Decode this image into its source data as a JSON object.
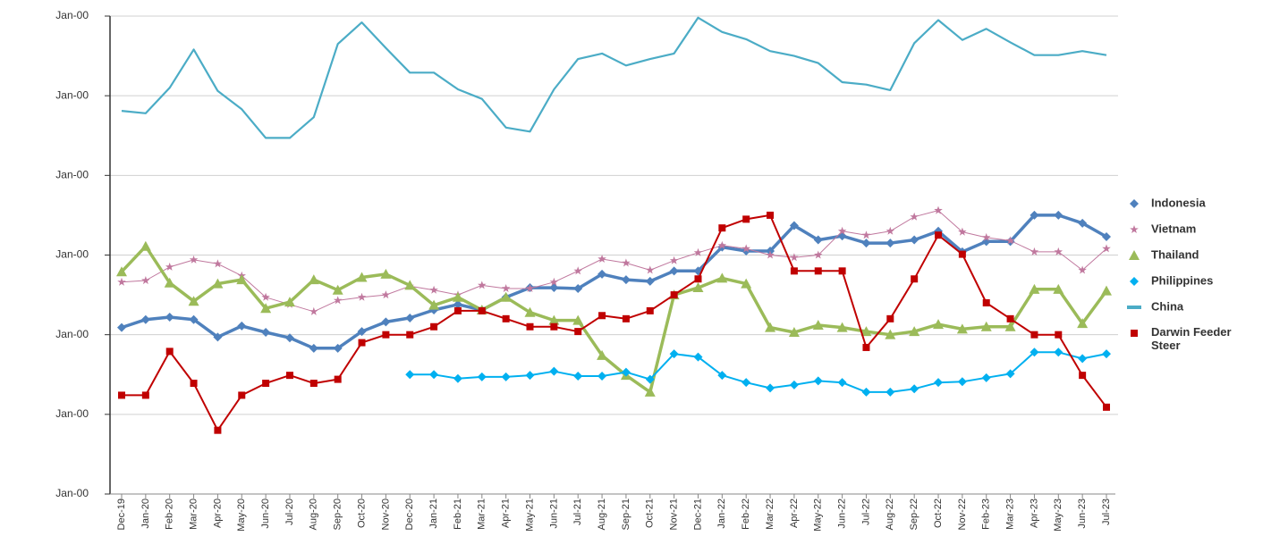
{
  "chart_data": {
    "type": "line",
    "categories": [
      "Dec-19",
      "Jan-20",
      "Feb-20",
      "Mar-20",
      "Apr-20",
      "May-20",
      "Jun-20",
      "Jul-20",
      "Aug-20",
      "Sep-20",
      "Oct-20",
      "Nov-20",
      "Dec-20",
      "Jan-21",
      "Feb-21",
      "Mar-21",
      "Apr-21",
      "May-21",
      "Jun-21",
      "Jul-21",
      "Aug-21",
      "Sep-21",
      "Oct-21",
      "Nov-21",
      "Dec-21",
      "Jan-22",
      "Feb-22",
      "Mar-22",
      "Apr-22",
      "May-22",
      "Jun-22",
      "Jul-22",
      "Aug-22",
      "Sep-22",
      "Oct-22",
      "Nov-22",
      "Feb-23",
      "Mar-23",
      "Apr-23",
      "May-23",
      "Jun-23",
      "Jul-23"
    ],
    "series": [
      {
        "name": "Indonesia",
        "color": "#4f81bd",
        "marker": "diamond",
        "values": [
          2.09,
          2.19,
          2.22,
          2.19,
          1.97,
          2.11,
          2.03,
          1.96,
          1.83,
          1.83,
          2.04,
          2.16,
          2.21,
          2.31,
          2.38,
          2.31,
          2.47,
          2.59,
          2.59,
          2.58,
          2.76,
          2.69,
          2.67,
          2.8,
          2.8,
          3.1,
          3.05,
          3.05,
          3.37,
          3.19,
          3.24,
          3.15,
          3.15,
          3.19,
          3.3,
          3.04,
          3.17,
          3.17,
          3.5,
          3.5,
          3.4,
          3.23
        ]
      },
      {
        "name": "Vietnam",
        "color": "#c0789e",
        "marker": "star",
        "values": [
          2.66,
          2.68,
          2.85,
          2.94,
          2.89,
          2.74,
          2.47,
          2.38,
          2.29,
          2.43,
          2.47,
          2.5,
          2.61,
          2.56,
          2.5,
          2.62,
          2.58,
          2.58,
          2.66,
          2.8,
          2.95,
          2.9,
          2.81,
          2.93,
          3.03,
          3.12,
          3.08,
          3.0,
          2.97,
          3.0,
          3.3,
          3.25,
          3.3,
          3.48,
          3.56,
          3.29,
          3.22,
          3.18,
          3.04,
          3.04,
          2.81,
          3.08
        ]
      },
      {
        "name": "Thailand",
        "color": "#9bbb59",
        "marker": "triangle",
        "values": [
          2.79,
          3.11,
          2.65,
          2.42,
          2.64,
          2.69,
          2.33,
          2.41,
          2.69,
          2.56,
          2.72,
          2.76,
          2.62,
          2.37,
          2.47,
          2.31,
          2.47,
          2.28,
          2.18,
          2.18,
          1.74,
          1.49,
          1.28,
          2.5,
          2.59,
          2.71,
          2.64,
          2.09,
          2.03,
          2.12,
          2.09,
          2.04,
          2.0,
          2.04,
          2.13,
          2.07,
          2.1,
          2.1,
          2.57,
          2.57,
          2.14,
          2.55
        ]
      },
      {
        "name": "Philippines",
        "color": "#00b0f0",
        "marker": "diamond",
        "values": [
          null,
          null,
          null,
          null,
          null,
          null,
          null,
          null,
          null,
          null,
          null,
          null,
          1.5,
          1.5,
          1.45,
          1.47,
          1.47,
          1.49,
          1.54,
          1.48,
          1.48,
          1.53,
          1.44,
          1.76,
          1.72,
          1.49,
          1.4,
          1.33,
          1.37,
          1.42,
          1.4,
          1.28,
          1.28,
          1.32,
          1.4,
          1.41,
          1.46,
          1.51,
          1.78,
          1.78,
          1.7,
          1.76
        ]
      },
      {
        "name": "China",
        "color": "#4bacc6",
        "marker": "none",
        "values": [
          4.81,
          4.78,
          5.1,
          5.58,
          5.06,
          4.83,
          4.47,
          4.47,
          4.73,
          5.65,
          5.92,
          5.6,
          5.29,
          5.29,
          5.08,
          4.96,
          4.6,
          4.55,
          5.08,
          5.46,
          5.53,
          5.38,
          5.46,
          5.53,
          5.98,
          5.8,
          5.71,
          5.56,
          5.5,
          5.41,
          5.17,
          5.14,
          5.07,
          5.66,
          5.95,
          5.7,
          5.84,
          5.67,
          5.51,
          5.51,
          5.56,
          5.51
        ]
      },
      {
        "name": "Darwin Feeder Steer",
        "color": "#c00000",
        "marker": "square",
        "values": [
          1.24,
          1.24,
          1.79,
          1.39,
          0.8,
          1.24,
          1.39,
          1.49,
          1.39,
          1.44,
          1.9,
          2.0,
          2.0,
          2.1,
          2.3,
          2.3,
          2.2,
          2.1,
          2.1,
          2.04,
          2.24,
          2.2,
          2.3,
          2.5,
          2.7,
          3.34,
          3.45,
          3.5,
          2.8,
          2.8,
          2.8,
          1.84,
          2.2,
          2.7,
          3.25,
          3.01,
          2.4,
          2.2,
          2.0,
          2.0,
          1.49,
          1.09
        ]
      }
    ],
    "ylim": [
      0,
      6
    ],
    "yticks": [
      {
        "value": 0,
        "label": "Jan-00"
      },
      {
        "value": 1,
        "label": "Jan-00"
      },
      {
        "value": 2,
        "label": "Jan-00"
      },
      {
        "value": 3,
        "label": "Jan-00"
      },
      {
        "value": 4,
        "label": "Jan-00"
      },
      {
        "value": 5,
        "label": "Jan-00"
      },
      {
        "value": 6,
        "label": "Jan-00"
      }
    ],
    "grid": true,
    "legend": "right"
  }
}
